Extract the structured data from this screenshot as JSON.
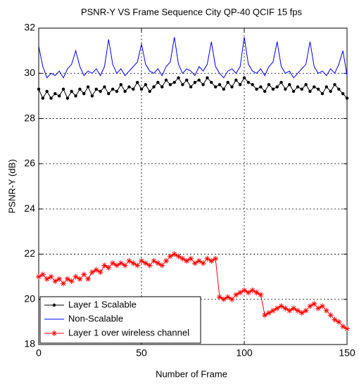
{
  "chart_data": {
    "type": "line",
    "title": "PSNR-Y VS Frame Sequence City QP-40 QCIF 15 fps",
    "xlabel": "Number of Frame",
    "ylabel": "PSNR-Y (dB)",
    "x": [
      0,
      2,
      4,
      6,
      8,
      10,
      12,
      14,
      16,
      18,
      20,
      22,
      24,
      26,
      28,
      30,
      32,
      34,
      36,
      38,
      40,
      42,
      44,
      46,
      48,
      50,
      52,
      54,
      56,
      58,
      60,
      62,
      64,
      66,
      68,
      70,
      72,
      74,
      76,
      78,
      80,
      82,
      84,
      86,
      88,
      90,
      92,
      94,
      96,
      98,
      100,
      102,
      104,
      106,
      108,
      110,
      112,
      114,
      116,
      118,
      120,
      122,
      124,
      126,
      128,
      130,
      132,
      134,
      136,
      138,
      140,
      142,
      144,
      146,
      148,
      150
    ],
    "series": [
      {
        "name": "Layer 1 Scalable",
        "color": "#000000",
        "marker": "dot",
        "values": [
          29.3,
          28.9,
          29.2,
          28.9,
          29.1,
          29.0,
          29.3,
          28.9,
          29.2,
          29.0,
          29.3,
          29.1,
          29.4,
          29.0,
          29.3,
          29.2,
          29.4,
          29.1,
          29.3,
          29.2,
          29.5,
          29.2,
          29.4,
          29.3,
          29.6,
          29.3,
          29.5,
          29.2,
          29.4,
          29.6,
          29.4,
          29.7,
          29.5,
          29.6,
          29.8,
          29.5,
          29.7,
          29.4,
          29.6,
          29.7,
          29.5,
          29.8,
          29.6,
          29.4,
          29.5,
          29.3,
          29.6,
          29.4,
          29.7,
          29.5,
          29.8,
          29.6,
          29.5,
          29.3,
          29.4,
          29.2,
          29.5,
          29.3,
          29.4,
          29.6,
          29.3,
          29.5,
          29.2,
          29.4,
          29.3,
          29.5,
          29.2,
          29.4,
          29.3,
          29.1,
          29.4,
          29.2,
          29.5,
          29.3,
          29.1,
          28.9
        ]
      },
      {
        "name": "Non-Scalable",
        "color": "#0000ff",
        "marker": "none",
        "values": [
          31.2,
          30.3,
          29.8,
          30.0,
          29.9,
          30.1,
          29.8,
          30.2,
          30.4,
          31.0,
          30.3,
          29.9,
          30.1,
          30.0,
          30.2,
          29.9,
          30.3,
          31.5,
          30.4,
          30.0,
          30.2,
          29.9,
          30.1,
          30.3,
          30.5,
          31.3,
          30.4,
          30.1,
          30.0,
          30.2,
          29.9,
          30.3,
          30.5,
          31.6,
          30.4,
          30.0,
          30.2,
          30.1,
          29.9,
          30.3,
          30.1,
          30.4,
          31.4,
          30.3,
          30.0,
          29.8,
          30.1,
          30.2,
          30.0,
          30.3,
          31.6,
          30.4,
          30.1,
          30.0,
          30.2,
          29.9,
          30.3,
          30.5,
          31.4,
          30.3,
          30.0,
          30.1,
          29.8,
          30.0,
          30.2,
          30.4,
          31.4,
          30.3,
          30.0,
          30.1,
          29.9,
          30.2,
          30.0,
          30.4,
          31.0,
          29.9
        ]
      },
      {
        "name": "Layer 1 over wireless channel",
        "color": "#ff0000",
        "marker": "star",
        "values": [
          21.0,
          21.1,
          20.9,
          21.0,
          20.8,
          20.9,
          20.7,
          20.9,
          20.8,
          21.0,
          20.9,
          21.1,
          20.9,
          21.2,
          21.3,
          21.2,
          21.5,
          21.4,
          21.6,
          21.5,
          21.6,
          21.5,
          21.7,
          21.6,
          21.5,
          21.7,
          21.6,
          21.5,
          21.7,
          21.6,
          21.5,
          21.7,
          21.9,
          22.0,
          21.9,
          21.8,
          21.7,
          21.8,
          21.6,
          21.7,
          21.6,
          21.8,
          21.7,
          21.8,
          20.1,
          20.0,
          20.1,
          20.0,
          20.2,
          20.3,
          20.4,
          20.3,
          20.4,
          20.3,
          20.2,
          19.3,
          19.4,
          19.5,
          19.6,
          19.7,
          19.6,
          19.5,
          19.6,
          19.5,
          19.4,
          19.5,
          19.7,
          19.8,
          19.6,
          19.7,
          19.5,
          19.3,
          19.1,
          19.0,
          18.8,
          18.7
        ]
      }
    ],
    "xlim": [
      0,
      150
    ],
    "xticks": [
      0,
      50,
      100,
      150
    ],
    "ylim": [
      18,
      32
    ],
    "yticks": [
      18,
      20,
      22,
      24,
      26,
      28,
      30,
      32
    ],
    "grid": true,
    "legend": "lower left"
  }
}
